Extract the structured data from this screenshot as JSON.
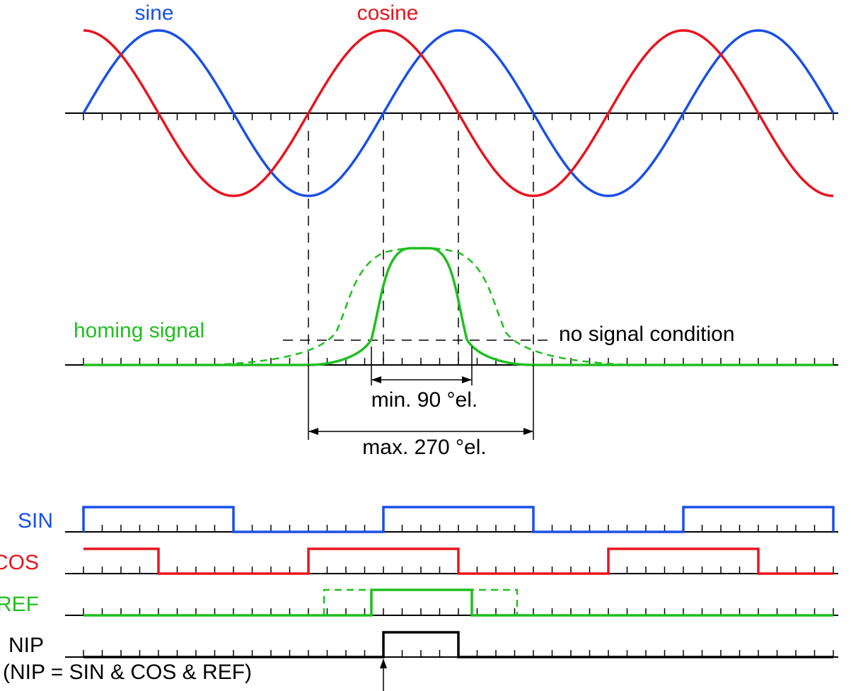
{
  "waves": {
    "sine": "sine",
    "cosine": "cosine"
  },
  "homing": {
    "label": "homing signal",
    "threshold": "no signal condition",
    "min_width": "min. 90 °el.",
    "max_width": "max. 270 °el."
  },
  "signals": {
    "sin": "SIN",
    "cos": "COS",
    "ref": "REF",
    "nip": "NIP",
    "formula": "(NIP = SIN & COS & REF)"
  }
}
